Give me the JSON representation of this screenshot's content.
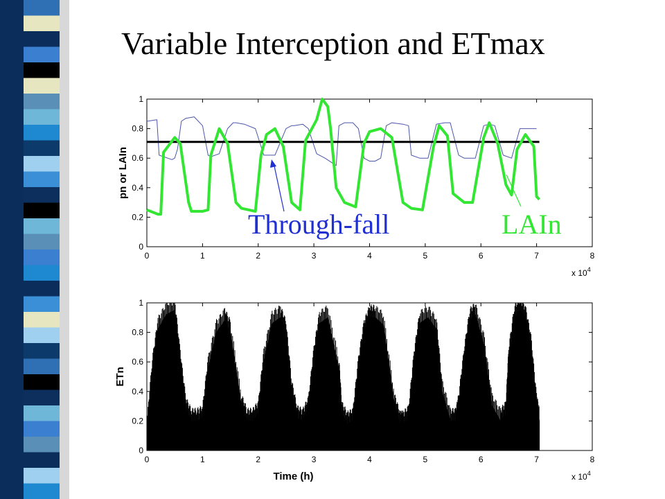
{
  "slide": {
    "title": "Variable Interception and ETmax",
    "stripe_colors": [
      "#2f6fb3",
      "#6fb7d8",
      "#0b2d5b",
      "#3b7fd0",
      "#000000",
      "#e6e6c0",
      "#5a90b8",
      "#1e88d0",
      "#0b3a6b",
      "#9fd0f0",
      "#3a8fd6",
      "#0d2f5e"
    ]
  },
  "chart_data": [
    {
      "type": "line",
      "title": "",
      "xlabel": "",
      "ylabel": "pn or LAIn",
      "x_multiplier": "x 10",
      "x_multiplier_exp": "4",
      "xlim": [
        0,
        8
      ],
      "ylim": [
        0,
        1
      ],
      "xticks": [
        "0",
        "1",
        "2",
        "3",
        "4",
        "5",
        "6",
        "7",
        "8"
      ],
      "yticks": [
        "0",
        "0.2",
        "0.4",
        "0.6",
        "0.8",
        "1"
      ],
      "grid": false,
      "series": [
        {
          "color": "#4b55a8",
          "x": [
            0,
            0.18,
            0.22,
            0.45,
            0.5,
            0.55,
            0.62,
            0.7,
            0.85,
            1.0,
            1.1,
            1.15,
            1.3,
            1.45,
            1.55,
            1.6,
            1.75,
            1.95,
            2.1,
            2.3,
            2.5,
            2.6,
            2.65,
            2.8,
            2.9,
            3.05,
            3.2,
            3.4,
            3.45,
            3.55,
            3.7,
            3.8,
            3.9,
            4.0,
            4.1,
            4.2,
            4.3,
            4.4,
            4.6,
            4.7,
            4.75,
            4.9,
            5.05,
            5.2,
            5.35,
            5.45,
            5.6,
            5.7,
            5.9,
            6.05,
            6.15,
            6.25,
            6.4,
            6.55,
            6.7,
            6.85,
            7.0
          ],
          "y": [
            0.85,
            0.86,
            0.62,
            0.59,
            0.6,
            0.66,
            0.85,
            0.87,
            0.88,
            0.82,
            0.62,
            0.61,
            0.63,
            0.8,
            0.84,
            0.84,
            0.83,
            0.8,
            0.62,
            0.62,
            0.8,
            0.82,
            0.82,
            0.83,
            0.8,
            0.63,
            0.6,
            0.55,
            0.82,
            0.84,
            0.84,
            0.8,
            0.6,
            0.58,
            0.58,
            0.6,
            0.82,
            0.84,
            0.83,
            0.82,
            0.62,
            0.6,
            0.6,
            0.83,
            0.84,
            0.84,
            0.62,
            0.6,
            0.6,
            0.82,
            0.83,
            0.82,
            0.62,
            0.6,
            0.8,
            0.8,
            0.8
          ]
        },
        {
          "color": "#000000",
          "x": [
            0,
            7.05
          ],
          "y": [
            0.71,
            0.71
          ]
        },
        {
          "color": "#33e633",
          "x": [
            0,
            0.2,
            0.25,
            0.3,
            0.5,
            0.6,
            0.75,
            0.8,
            1.0,
            1.1,
            1.15,
            1.3,
            1.45,
            1.6,
            1.7,
            1.95,
            2.05,
            2.15,
            2.3,
            2.45,
            2.6,
            2.75,
            2.85,
            3.05,
            3.15,
            3.25,
            3.3,
            3.4,
            3.55,
            3.75,
            3.9,
            4.0,
            4.2,
            4.4,
            4.6,
            4.75,
            4.95,
            5.15,
            5.25,
            5.4,
            5.5,
            5.7,
            5.85,
            6.05,
            6.15,
            6.3,
            6.45,
            6.55,
            6.65,
            6.8,
            6.95,
            7.0,
            7.05
          ],
          "y": [
            0.25,
            0.22,
            0.22,
            0.64,
            0.74,
            0.7,
            0.3,
            0.24,
            0.24,
            0.25,
            0.62,
            0.8,
            0.7,
            0.3,
            0.26,
            0.24,
            0.62,
            0.76,
            0.8,
            0.68,
            0.3,
            0.25,
            0.72,
            0.86,
            1.0,
            0.95,
            0.8,
            0.4,
            0.3,
            0.27,
            0.7,
            0.78,
            0.8,
            0.74,
            0.3,
            0.26,
            0.25,
            0.68,
            0.82,
            0.75,
            0.36,
            0.3,
            0.3,
            0.74,
            0.84,
            0.7,
            0.42,
            0.35,
            0.66,
            0.76,
            0.68,
            0.34,
            0.32
          ]
        }
      ],
      "annotations": [
        {
          "text": "Through-fall",
          "color": "#1f2fd0"
        },
        {
          "text": "LAIn",
          "color": "#33e633"
        }
      ]
    },
    {
      "type": "area",
      "title": "",
      "xlabel": "Time (h)",
      "ylabel": "ETn",
      "x_multiplier": "x 10",
      "x_multiplier_exp": "4",
      "xlim": [
        0,
        8
      ],
      "ylim": [
        0,
        1
      ],
      "xticks": [
        "0",
        "1",
        "2",
        "3",
        "4",
        "5",
        "6",
        "7",
        "8"
      ],
      "yticks": [
        "0",
        "0.2",
        "0.4",
        "0.6",
        "0.8",
        "1"
      ],
      "grid": false,
      "series": [
        {
          "color": "#000000",
          "x": [
            0,
            0.1,
            0.2,
            0.35,
            0.5,
            0.6,
            0.7,
            0.8,
            0.9,
            1.0,
            1.1,
            1.25,
            1.4,
            1.5,
            1.7,
            1.8,
            1.9,
            2.0,
            2.1,
            2.25,
            2.4,
            2.5,
            2.6,
            2.7,
            2.8,
            2.9,
            3.0,
            3.1,
            3.25,
            3.45,
            3.5,
            3.6,
            3.7,
            3.8,
            3.9,
            4.0,
            4.1,
            4.25,
            4.45,
            4.55,
            4.6,
            4.7,
            4.8,
            4.9,
            5.05,
            5.2,
            5.3,
            5.45,
            5.55,
            5.6,
            5.7,
            5.8,
            5.9,
            6.05,
            6.2,
            6.35,
            6.45,
            6.5,
            6.6,
            6.7,
            6.8,
            6.9,
            7.0,
            7.05
          ],
          "y": [
            0.12,
            0.55,
            0.82,
            0.92,
            0.95,
            0.6,
            0.28,
            0.2,
            0.2,
            0.22,
            0.55,
            0.8,
            0.88,
            0.8,
            0.3,
            0.2,
            0.2,
            0.25,
            0.6,
            0.86,
            0.9,
            0.8,
            0.4,
            0.22,
            0.2,
            0.28,
            0.62,
            0.86,
            0.9,
            0.55,
            0.25,
            0.18,
            0.2,
            0.55,
            0.8,
            0.9,
            0.9,
            0.85,
            0.3,
            0.18,
            0.18,
            0.22,
            0.6,
            0.86,
            0.9,
            0.82,
            0.4,
            0.2,
            0.2,
            0.3,
            0.62,
            0.88,
            0.92,
            0.72,
            0.3,
            0.2,
            0.25,
            0.62,
            0.9,
            0.95,
            0.9,
            0.7,
            0.3,
            0.2
          ]
        }
      ]
    }
  ]
}
